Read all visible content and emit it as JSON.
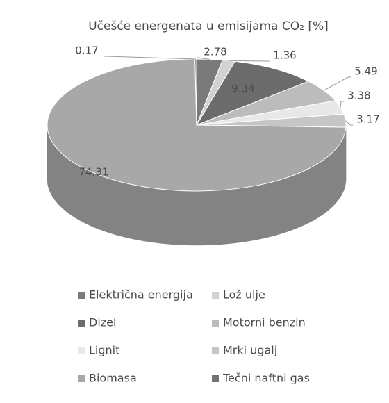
{
  "chart_data": {
    "type": "pie",
    "title": "Učešće energenata u emisijama CO₂ [%]",
    "categories": [
      "Električna energija",
      "Lož ulje",
      "Dizel",
      "Motorni benzin",
      "Lignit",
      "Mrki ugalj",
      "Biomasa",
      "Tečni naftni gas"
    ],
    "values": [
      2.78,
      1.36,
      9.34,
      5.49,
      3.38,
      3.17,
      74.31,
      0.17
    ],
    "colors": [
      "#7a7a7a",
      "#d2d2d2",
      "#6c6c6c",
      "#bcbcbc",
      "#e8e8e8",
      "#c6c6c6",
      "#a8a8a8",
      "#727272"
    ],
    "legend": "bottom"
  }
}
